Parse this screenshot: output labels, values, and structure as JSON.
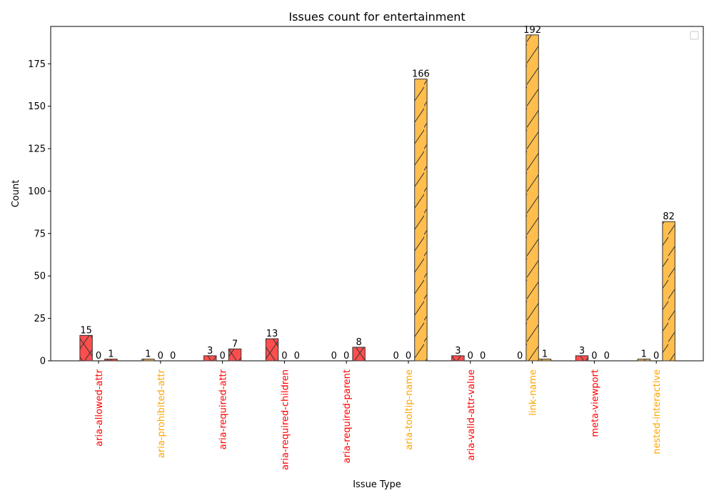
{
  "chart_data": {
    "type": "bar",
    "title": "Issues count for entertainment",
    "xlabel": "Issue Type",
    "ylabel": "Count",
    "ylim": [
      0,
      197
    ],
    "yticks": [
      0,
      25,
      50,
      75,
      100,
      125,
      150,
      175
    ],
    "legend": "upper-right (empty box)",
    "grid": false,
    "categories": [
      "aria-allowed-attr",
      "aria-prohibited-attr",
      "aria-required-attr",
      "aria-required-children",
      "aria-required-parent",
      "aria-tooltip-name",
      "aria-valid-attr-value",
      "link-name",
      "meta-viewport",
      "nested-interactive"
    ],
    "category_colors": [
      "#ff0000",
      "#ffa500",
      "#ff0000",
      "#ff0000",
      "#ff0000",
      "#ffa500",
      "#ff0000",
      "#ffa500",
      "#ff0000",
      "#ffa500"
    ],
    "series": [
      {
        "values": [
          15,
          1,
          3,
          13,
          0,
          0,
          3,
          0,
          3,
          1
        ]
      },
      {
        "values": [
          0,
          0,
          0,
          0,
          0,
          0,
          0,
          192,
          0,
          0
        ]
      },
      {
        "values": [
          1,
          0,
          7,
          0,
          8,
          166,
          0,
          1,
          0,
          82
        ]
      }
    ],
    "bar_colors": {
      "critical": "#ff4444",
      "serious": "#ffbb44"
    },
    "hatch": {
      "critical": "x",
      "serious": "/"
    }
  }
}
